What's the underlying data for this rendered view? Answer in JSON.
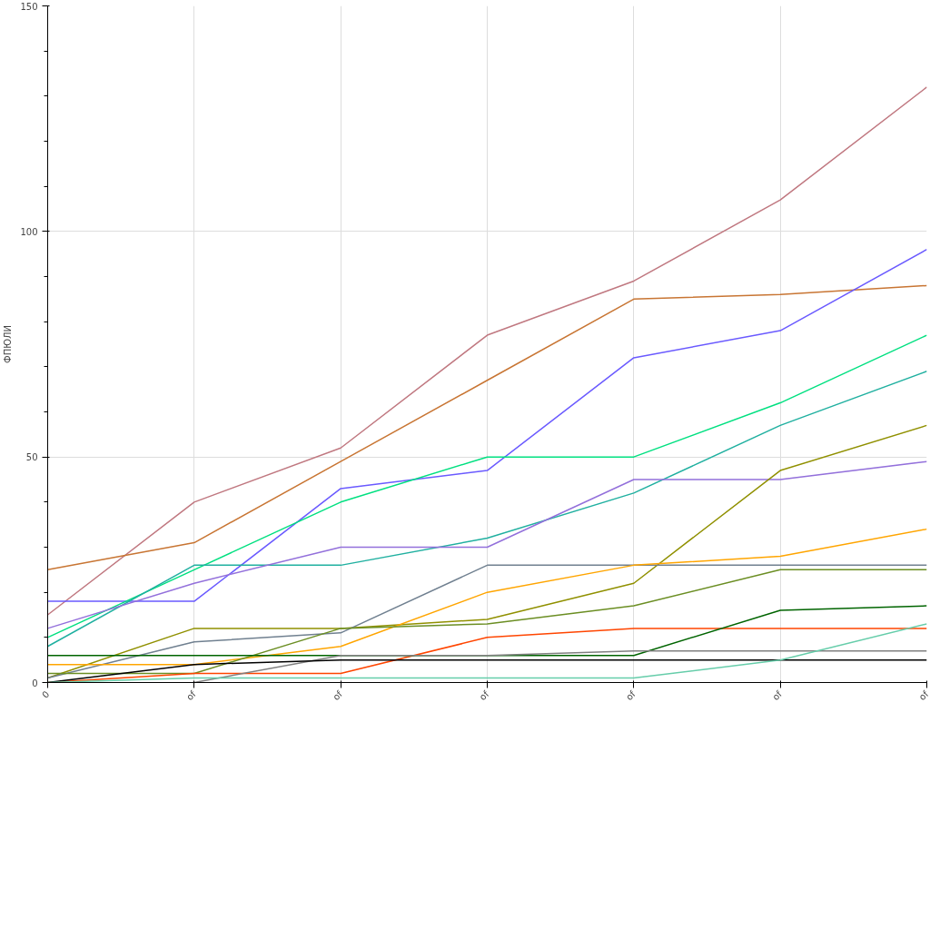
{
  "chart_data": {
    "type": "line",
    "ylabel": "ФПЮЛИ",
    "categories": [
      "0",
      "of",
      "of",
      "of",
      "of",
      "of",
      "of"
    ],
    "ylim": [
      0,
      150
    ],
    "yticks": [
      0,
      {
        "value": 10,
        "label": null
      },
      {
        "value": 20,
        "label": null
      },
      {
        "value": 30,
        "label": null
      },
      {
        "value": 40,
        "label": null
      },
      50,
      {
        "value": 60,
        "label": null
      },
      {
        "value": 70,
        "label": null
      },
      {
        "value": 80,
        "label": null
      },
      {
        "value": 90,
        "label": null
      },
      100,
      {
        "value": 110,
        "label": null
      },
      {
        "value": 120,
        "label": null
      },
      {
        "value": 130,
        "label": null
      },
      {
        "value": 140,
        "label": null
      },
      150
    ],
    "grid": true,
    "marker": "none",
    "line_style": "solid",
    "series": [
      {
        "color": "#c07880",
        "values": [
          15,
          40,
          52,
          77,
          89,
          107,
          132
        ]
      },
      {
        "color": "#c87533",
        "values": [
          25,
          31,
          49,
          67,
          85,
          86,
          88
        ]
      },
      {
        "color": "#6a5aff",
        "values": [
          18,
          18,
          43,
          47,
          72,
          78,
          96
        ]
      },
      {
        "color": "#00e080",
        "values": [
          10,
          25,
          40,
          50,
          50,
          62,
          77
        ]
      },
      {
        "color": "#20b0a0",
        "values": [
          8,
          26,
          26,
          32,
          42,
          57,
          69
        ]
      },
      {
        "color": "#9370db",
        "values": [
          12,
          22,
          30,
          30,
          45,
          45,
          49
        ]
      },
      {
        "color": "#909000",
        "values": [
          1,
          12,
          12,
          14,
          22,
          47,
          57
        ]
      },
      {
        "color": "#708090",
        "values": [
          1,
          9,
          11,
          26,
          26,
          26,
          26
        ]
      },
      {
        "color": "#ffa500",
        "values": [
          4,
          4,
          8,
          20,
          26,
          28,
          34
        ]
      },
      {
        "color": "#6b8e23",
        "values": [
          2,
          2,
          12,
          13,
          17,
          25,
          25
        ]
      },
      {
        "color": "#ff4500",
        "values": [
          0,
          2,
          2,
          10,
          12,
          12,
          12
        ]
      },
      {
        "color": "#006400",
        "values": [
          6,
          6,
          6,
          6,
          6,
          16,
          17
        ]
      },
      {
        "color": "#808080",
        "values": [
          null,
          0,
          6,
          6,
          7,
          7,
          7
        ]
      },
      {
        "color": "#000000",
        "values": [
          0,
          4,
          5,
          5,
          5,
          5,
          5
        ]
      },
      {
        "color": "#66cdaa",
        "values": [
          0,
          1,
          1,
          1,
          1,
          5,
          13
        ]
      }
    ]
  }
}
